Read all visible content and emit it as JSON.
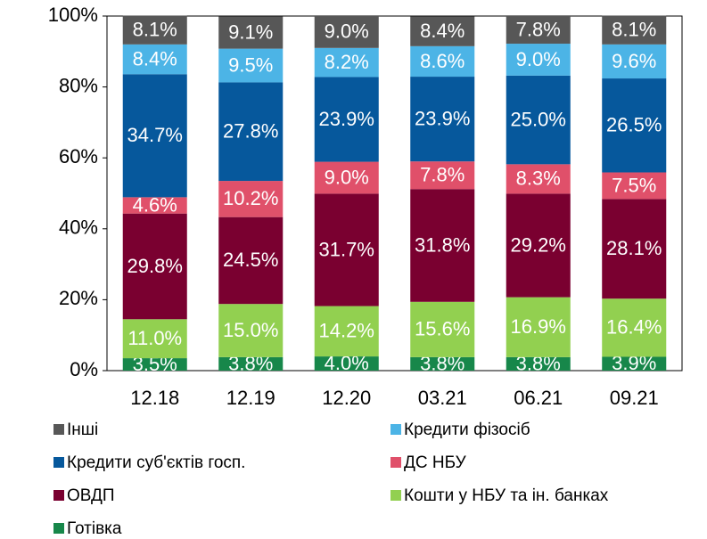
{
  "chart_data": {
    "type": "stacked_bar",
    "categories": [
      "12.18",
      "12.19",
      "12.20",
      "03.21",
      "06.21",
      "09.21"
    ],
    "ylim": [
      0,
      100
    ],
    "yticks": [
      {
        "value": 0,
        "label": "0%"
      },
      {
        "value": 20,
        "label": "20%"
      },
      {
        "value": 40,
        "label": "40%"
      },
      {
        "value": 60,
        "label": "60%"
      },
      {
        "value": 80,
        "label": "80%"
      },
      {
        "value": 100,
        "label": "100%"
      }
    ],
    "series": [
      {
        "name": "Готівка",
        "color": "#17874a",
        "values": [
          3.5,
          3.8,
          4.0,
          3.8,
          3.8,
          3.9
        ],
        "value_labels": [
          "3.5%",
          "3.8%",
          "4.0%",
          "3.8%",
          "3.8%",
          "3.9%"
        ]
      },
      {
        "name": "Кошти у НБУ та ін. банках",
        "color": "#92d050",
        "values": [
          11.0,
          15.0,
          14.2,
          15.6,
          16.9,
          16.4
        ],
        "value_labels": [
          "11.0%",
          "15.0%",
          "14.2%",
          "15.6%",
          "16.9%",
          "16.4%"
        ]
      },
      {
        "name": "ОВДП",
        "color": "#7a0030",
        "values": [
          29.8,
          24.5,
          31.7,
          31.8,
          29.2,
          28.1
        ],
        "value_labels": [
          "29.8%",
          "24.5%",
          "31.7%",
          "31.8%",
          "29.2%",
          "28.1%"
        ]
      },
      {
        "name": "ДС НБУ",
        "color": "#e0506a",
        "values": [
          4.6,
          10.2,
          9.0,
          7.8,
          8.3,
          7.5
        ],
        "value_labels": [
          "4.6%",
          "10.2%",
          "9.0%",
          "7.8%",
          "8.3%",
          "7.5%"
        ]
      },
      {
        "name": "Кредити суб'єктів госп.",
        "color": "#06589c",
        "values": [
          34.7,
          27.8,
          23.9,
          23.9,
          25.0,
          26.5
        ],
        "value_labels": [
          "34.7%",
          "27.8%",
          "23.9%",
          "23.9%",
          "25.0%",
          "26.5%"
        ]
      },
      {
        "name": "Кредити фізосіб",
        "color": "#4cb4e6",
        "values": [
          8.4,
          9.5,
          8.2,
          8.6,
          9.0,
          9.6
        ],
        "value_labels": [
          "8.4%",
          "9.5%",
          "8.2%",
          "8.6%",
          "9.0%",
          "9.6%"
        ]
      },
      {
        "name": "Інші",
        "color": "#575757",
        "values": [
          8.1,
          9.1,
          9.0,
          8.4,
          7.8,
          8.1
        ],
        "value_labels": [
          "8.1%",
          "9.1%",
          "9.0%",
          "8.4%",
          "7.8%",
          "8.1%"
        ]
      }
    ]
  }
}
